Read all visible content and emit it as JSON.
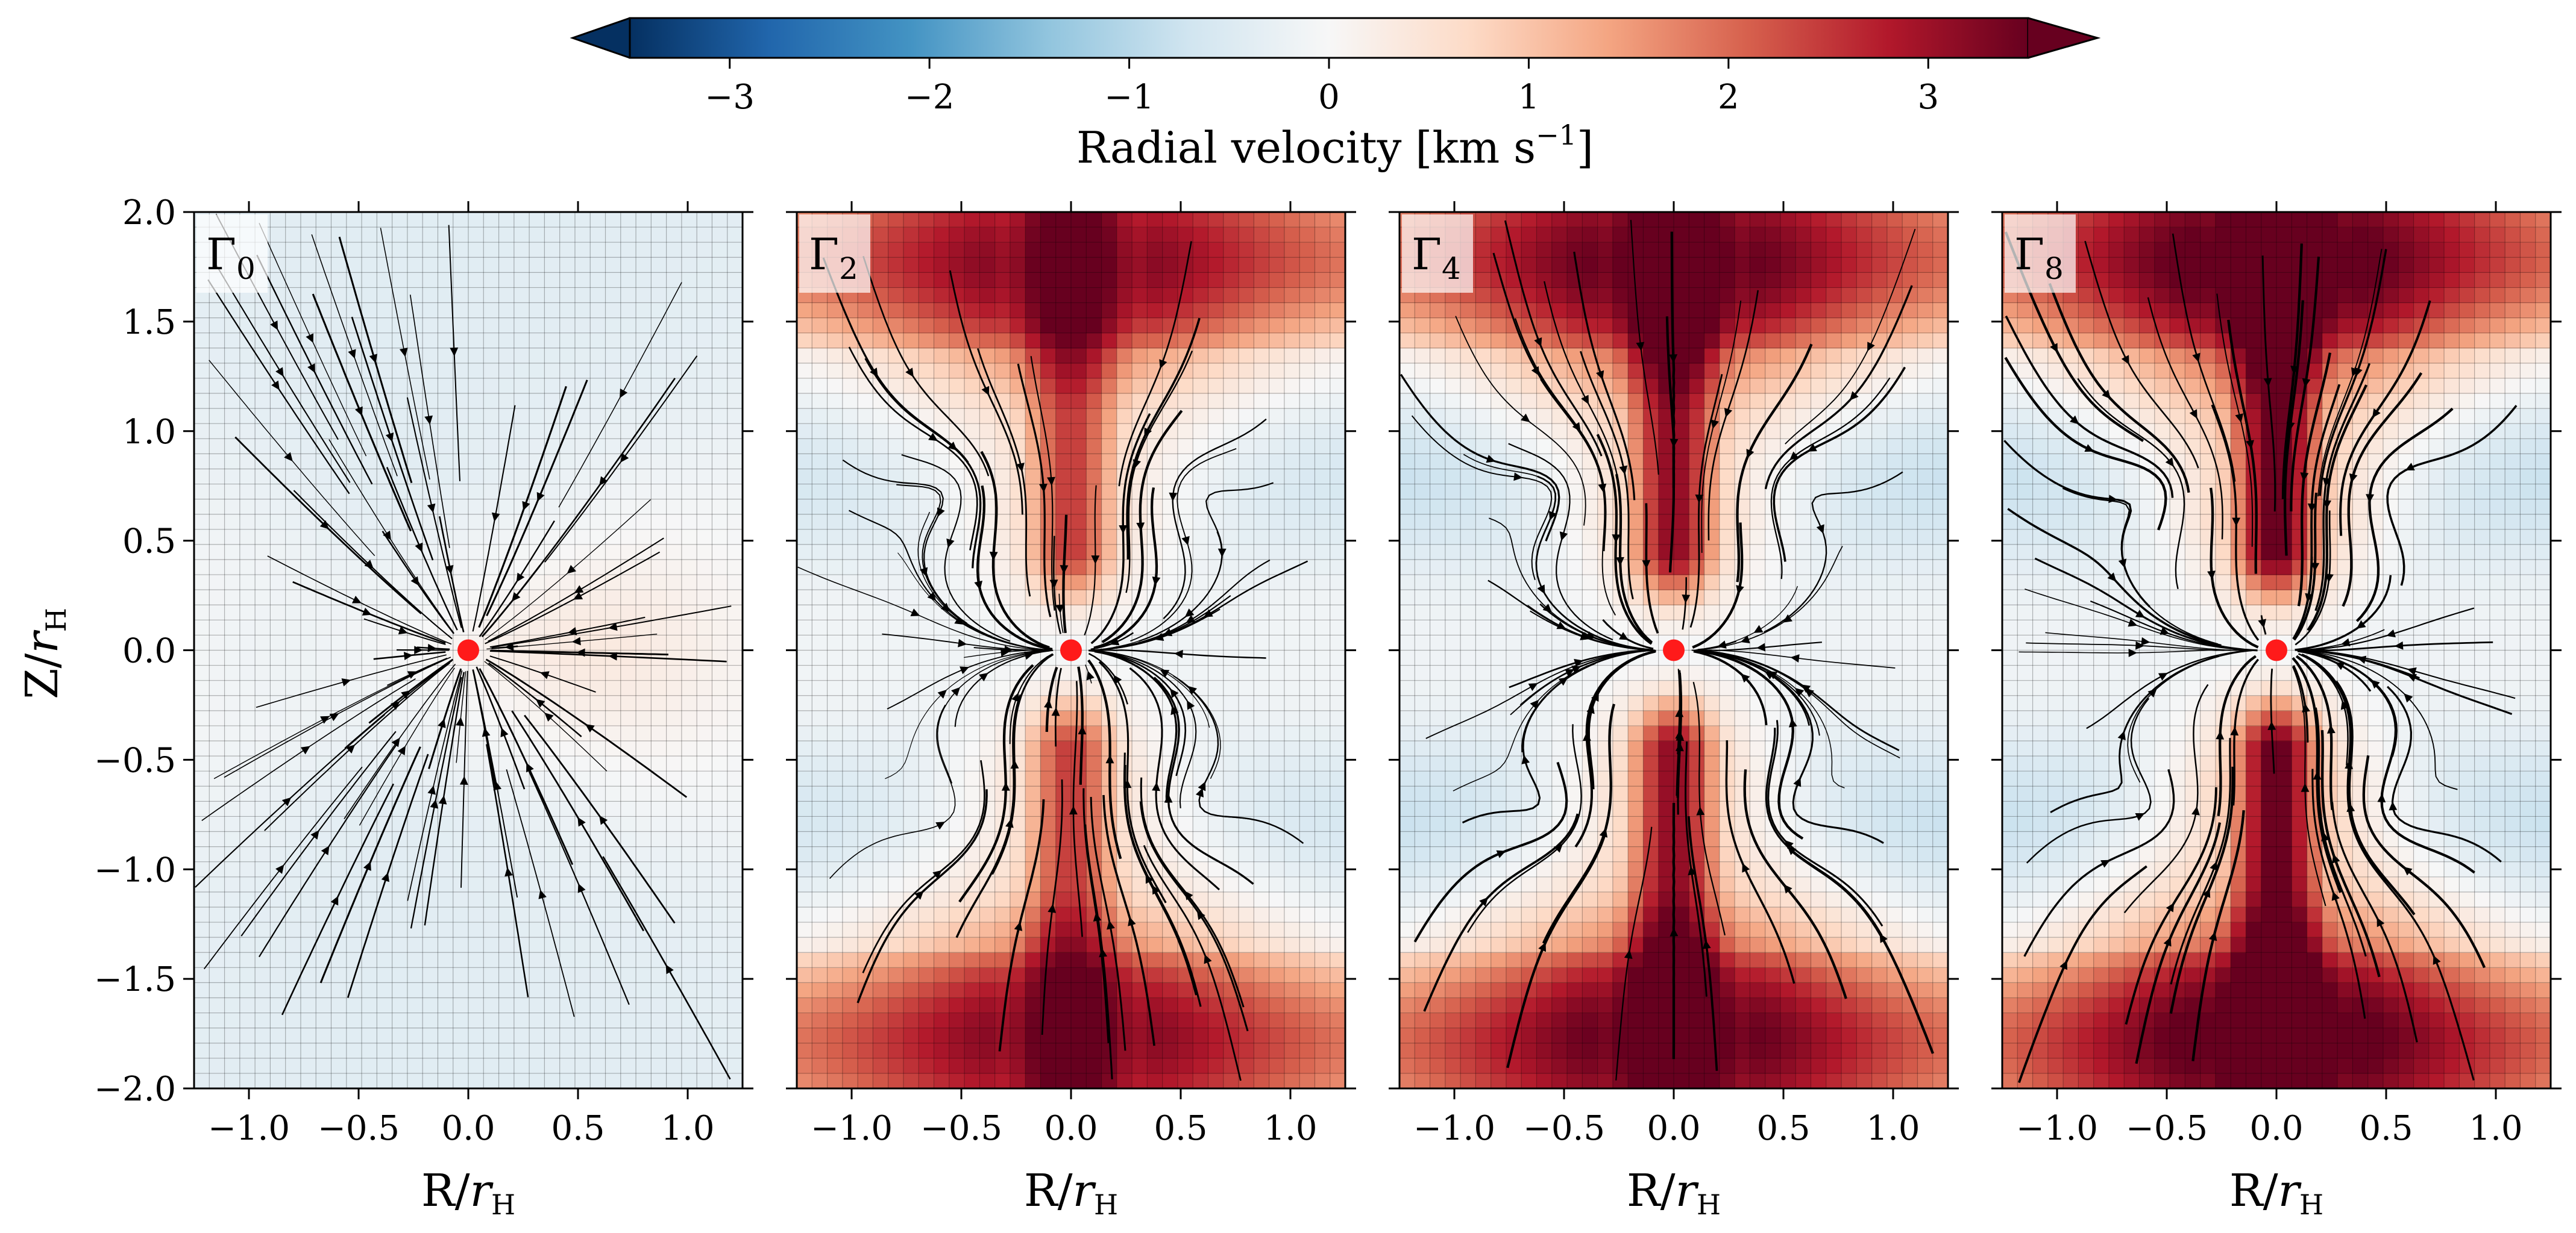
{
  "colorbar": {
    "label_main": "Radial velocity [km s",
    "label_sup": "−1",
    "label_end": "]",
    "vmin": -3.5,
    "vmax": 3.5,
    "ticks": [
      -3,
      -2,
      -1,
      0,
      1,
      2,
      3
    ],
    "tick_labels": [
      "−3",
      "−2",
      "−1",
      "0",
      "1",
      "2",
      "3"
    ],
    "extend": "both",
    "colormap": "RdBu_r",
    "color_stops": [
      "#053061",
      "#2166ac",
      "#4393c3",
      "#92c5de",
      "#d1e5f0",
      "#f7f7f7",
      "#fddbc7",
      "#f4a582",
      "#d6604d",
      "#b2182b",
      "#67001f"
    ]
  },
  "axes": {
    "xlabel_main": "R/",
    "xlabel_r": "r",
    "xlabel_sub": "H",
    "ylabel_main": "Z/",
    "ylabel_r": "r",
    "ylabel_sub": "H",
    "xlim": [
      -1.25,
      1.25
    ],
    "ylim": [
      -2.0,
      2.0
    ],
    "xticks": [
      -1.0,
      -0.5,
      0.0,
      0.5,
      1.0
    ],
    "xtick_labels": [
      "−1.0",
      "−0.5",
      "0.0",
      "0.5",
      "1.0"
    ],
    "yticks": [
      2.0,
      1.5,
      1.0,
      0.5,
      0.0,
      -0.5,
      -1.0,
      -1.5,
      -2.0
    ],
    "ytick_labels": [
      "2.0",
      "1.5",
      "1.0",
      "0.5",
      "0.0",
      "−0.5",
      "−1.0",
      "−1.5",
      "−2.0"
    ]
  },
  "planet_color": "#ff1a1a",
  "chart_data": [
    {
      "type": "heatmap",
      "panel": "Gamma_0",
      "title_main": "Γ",
      "title_sub": "0",
      "planet": {
        "x": 0.0,
        "y": 0.0
      },
      "field": {
        "polar_peak": -0.4,
        "midplane_peak": 0.35,
        "equator_width": 0.9
      },
      "streamline_direction": "inflow",
      "streamline_strength": 0.5
    },
    {
      "type": "heatmap",
      "panel": "Gamma_2",
      "title_main": "Γ",
      "title_sub": "2",
      "planet": {
        "x": 0.0,
        "y": 0.0
      },
      "field": {
        "polar_peak": 2.0,
        "polar_core": 2.5,
        "midplane_peak": -0.6,
        "equator_width": 0.6
      },
      "streamline_direction": "polar-inflow",
      "streamline_strength": 0.8
    },
    {
      "type": "heatmap",
      "panel": "Gamma_4",
      "title_main": "Γ",
      "title_sub": "4",
      "planet": {
        "x": 0.0,
        "y": 0.0
      },
      "field": {
        "polar_peak": 2.6,
        "polar_core": 3.2,
        "midplane_peak": -0.8,
        "equator_width": 0.55
      },
      "streamline_direction": "polar-inflow",
      "streamline_strength": 1.0
    },
    {
      "type": "heatmap",
      "panel": "Gamma_8",
      "title_main": "Γ",
      "title_sub": "8",
      "planet": {
        "x": 0.0,
        "y": 0.0
      },
      "field": {
        "polar_peak": 3.0,
        "polar_core": 3.6,
        "midplane_peak": -0.8,
        "equator_width": 0.5
      },
      "streamline_direction": "polar-inflow",
      "streamline_strength": 1.1
    }
  ]
}
